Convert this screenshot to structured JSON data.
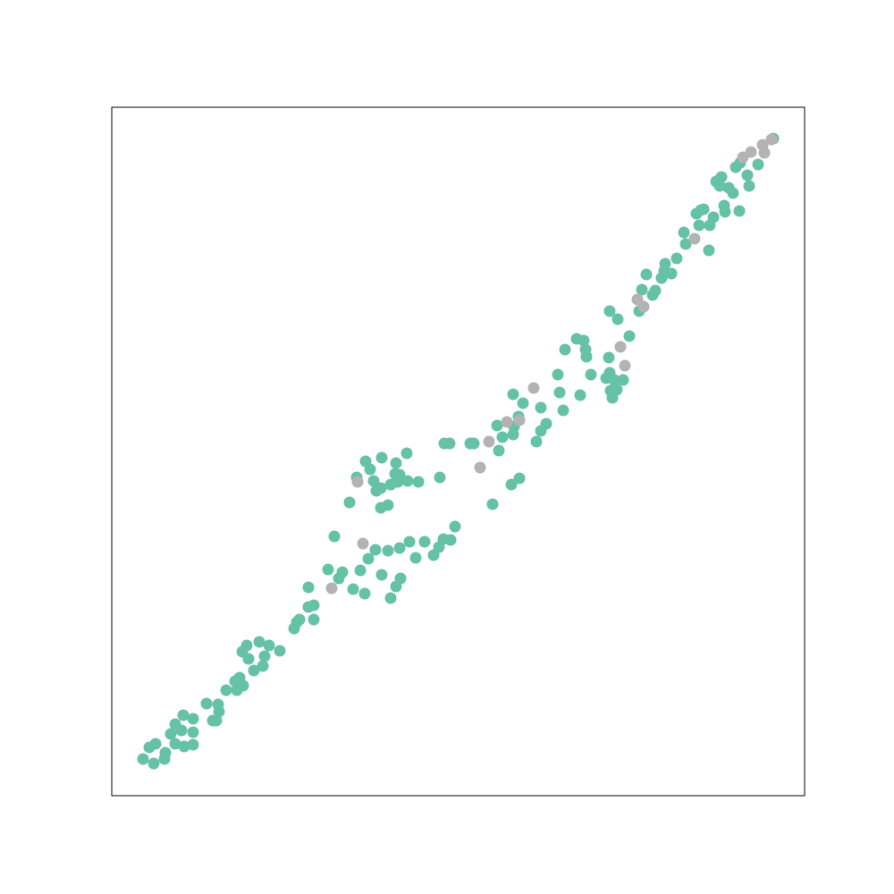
{
  "chart_data": {
    "type": "scatter",
    "xlim": [
      0,
      775
    ],
    "ylim": [
      0,
      770
    ],
    "series": [
      {
        "color": "#66c2a5",
        "x": [
          35,
          47,
          59,
          60,
          42,
          49,
          71,
          81,
          91,
          66,
          78,
          91,
          71,
          80,
          91,
          106,
          113,
          117,
          120,
          119,
          128,
          138,
          140,
          147,
          143,
          146,
          151,
          153,
          159,
          169,
          165,
          176,
          171,
          188,
          204,
          207,
          210,
          220,
          226,
          226,
          220,
          242,
          254,
          258,
          249,
          270,
          283,
          278,
          287,
          302,
          312,
          318,
          323,
          309,
          295,
          322,
          333,
          340,
          350,
          360,
          366,
          371,
          379,
          384,
          266,
          274,
          284,
          289,
          293,
          296,
          301,
          302,
          301,
          309,
          312,
          318,
          317,
          322,
          320,
          330,
          331,
          343,
          367,
          401,
          405,
          372,
          378,
          426,
          447,
          456,
          433,
          431,
          437,
          449,
          450,
          455,
          449,
          460,
          475,
          480,
          480,
          486,
          499,
          501,
          505,
          524,
          507,
          520,
          528,
          530,
          531,
          536,
          553,
          557,
          562,
          558,
          560,
          565,
          572,
          556,
          557,
          566,
          579,
          590,
          593,
          598,
          605,
          608,
          615,
          618,
          619,
          626,
          632,
          640,
          642,
          654,
          657,
          662,
          673,
          669,
          668,
          680,
          685,
          676,
          682,
          690,
          695,
          698,
          703,
          711,
          713,
          723,
          702,
          686,
          659,
          740
        ],
        "values": [
          41,
          36,
          41,
          48,
          54,
          58,
          58,
          55,
          57,
          69,
          73,
          71,
          80,
          90,
          86,
          103,
          84,
          84,
          94,
          102,
          118,
          128,
          118,
          123,
          132,
          161,
          168,
          153,
          140,
          145,
          172,
          168,
          156,
          162,
          187,
          194,
          197,
          211,
          197,
          213,
          233,
          253,
          243,
          250,
          290,
          231,
          226,
          252,
          265,
          247,
          221,
          234,
          243,
          274,
          275,
          277,
          284,
          266,
          284,
          269,
          278,
          287,
          286,
          301,
          328,
          356,
          374,
          365,
          352,
          341,
          344,
          378,
          322,
          325,
          348,
          372,
          360,
          359,
          351,
          383,
          352,
          351,
          356,
          394,
          394,
          394,
          394,
          326,
          348,
          355,
          386,
          414,
          401,
          404,
          413,
          424,
          449,
          439,
          396,
          408,
          434,
          416,
          471,
          451,
          431,
          448,
          499,
          511,
          509,
          499,
          491,
          471,
          467,
          473,
          465,
          453,
          445,
          454,
          465,
          490,
          542,
          533,
          514,
          542,
          566,
          583,
          560,
          565,
          579,
          587,
          595,
          584,
          601,
          630,
          617,
          651,
          638,
          656,
          647,
          638,
          610,
          682,
          660,
          687,
          692,
          680,
          674,
          703,
          708,
          694,
          682,
          706,
          654,
          653,
          655,
          735
        ]
      },
      {
        "color": "#b3b3b3",
        "x": [
          281,
          246,
          275,
          422,
          412,
          442,
          456,
          472,
          569,
          574,
          588,
          595,
          652,
          706,
          715,
          730,
          728,
          738
        ],
        "values": [
          282,
          232,
          351,
          396,
          367,
          418,
          420,
          456,
          502,
          481,
          555,
          547,
          623,
          714,
          720,
          719,
          728,
          734
        ]
      }
    ]
  }
}
